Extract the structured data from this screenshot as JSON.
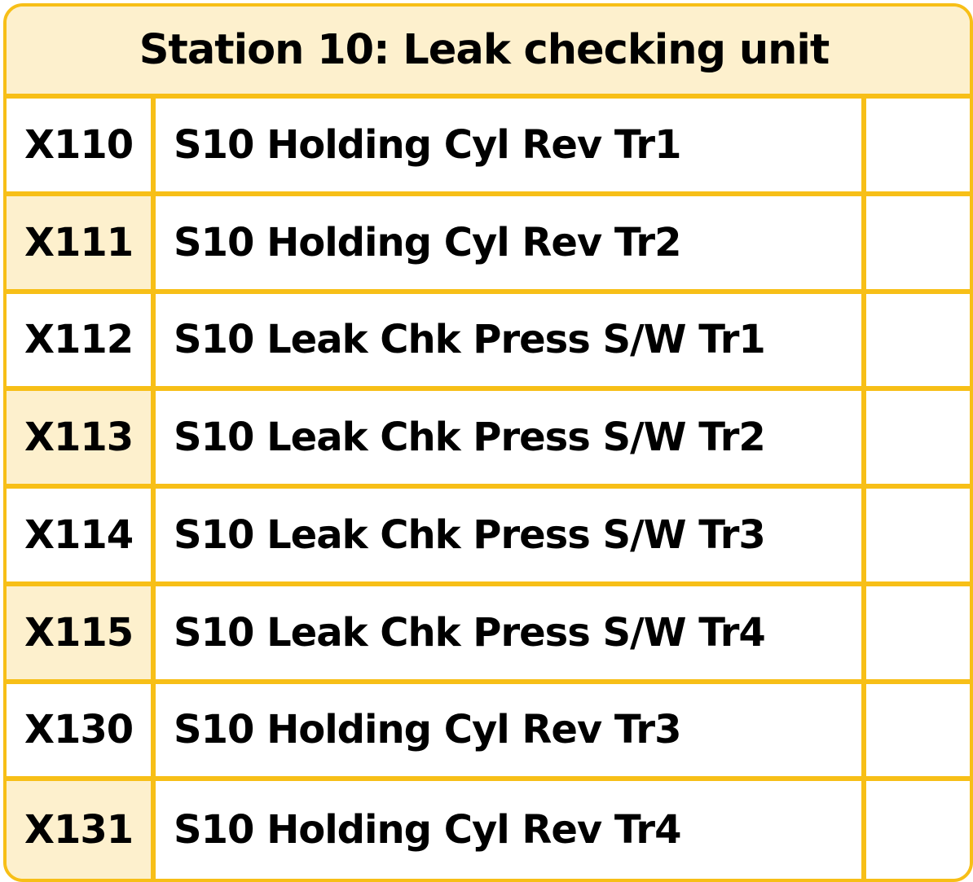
{
  "title": "Station 10: Leak checking unit",
  "colors": {
    "border": "#f7bf17",
    "header_fill": "#fdf0cd",
    "tinted_cell_fill": "#fdf0cd",
    "cell_fill": "#ffffff",
    "text": "#000000"
  },
  "rows": [
    {
      "id": "X110",
      "description": "S10 Holding Cyl Rev Tr1",
      "value": "",
      "tinted": false
    },
    {
      "id": "X111",
      "description": "S10 Holding Cyl Rev Tr2",
      "value": "",
      "tinted": true
    },
    {
      "id": "X112",
      "description": "S10 Leak Chk Press S/W Tr1",
      "value": "",
      "tinted": false
    },
    {
      "id": "X113",
      "description": "S10 Leak Chk Press S/W Tr2",
      "value": "",
      "tinted": true
    },
    {
      "id": "X114",
      "description": "S10 Leak Chk Press S/W Tr3",
      "value": "",
      "tinted": false
    },
    {
      "id": "X115",
      "description": "S10 Leak Chk Press S/W Tr4",
      "value": "",
      "tinted": true
    },
    {
      "id": "X130",
      "description": "S10 Holding Cyl Rev Tr3",
      "value": "",
      "tinted": false
    },
    {
      "id": "X131",
      "description": "S10 Holding Cyl Rev Tr4",
      "value": "",
      "tinted": true
    }
  ]
}
